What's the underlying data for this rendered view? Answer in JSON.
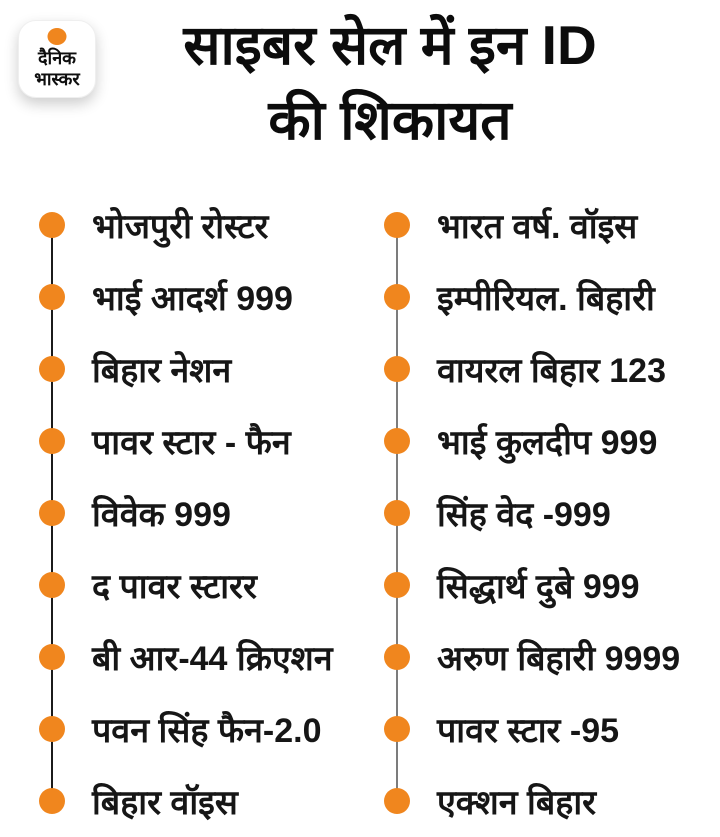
{
  "logo": {
    "line1": "दैनिक",
    "line2": "भास्कर"
  },
  "title": {
    "line1": "साइबर सेल में इन ID",
    "line2": "की शिकायत"
  },
  "list": {
    "left_column": {
      "items": [
        "भोजपुरी रोस्टर",
        "भाई आदर्श 999",
        "बिहार नेशन",
        "पावर स्टार - फैन",
        "विवेक 999",
        "द पावर स्टारर",
        "बी आर-44 क्रिएशन",
        "पवन सिंह फैन-2.0",
        "बिहार वॉइस"
      ],
      "line_color": "#1b1b1b"
    },
    "right_column": {
      "items": [
        "भारत वर्ष. वॉइस",
        "इम्पीरियल. बिहारी",
        "वायरल बिहार 123",
        "भाई कुलदीप 999",
        "सिंह वेद -999",
        "सिद्धार्थ दुबे 999",
        "अरुण बिहारी 9999",
        "पावर स्टार -95",
        "एक्शन बिहार"
      ],
      "line_color": "#7c7c7c"
    }
  },
  "colors": {
    "accent_orange": "#F0861E",
    "title_text": "#0c0c0c",
    "item_text": "#161616",
    "background": "#ffffff"
  }
}
